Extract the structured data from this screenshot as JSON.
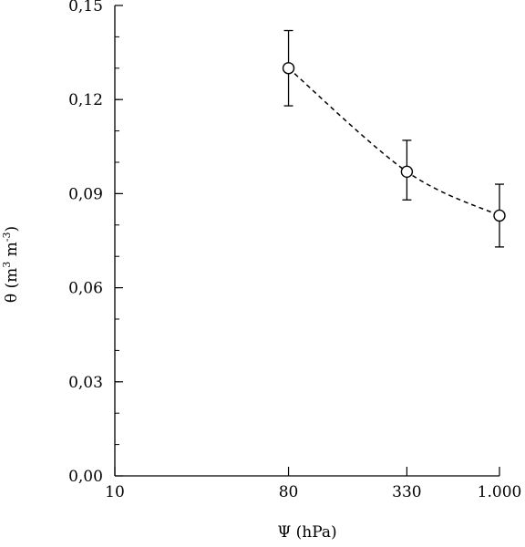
{
  "chart_data": {
    "type": "scatter",
    "title": "",
    "xlabel": "Ψ (hPa)",
    "ylabel": "θ (m3 m-3)",
    "ylabel_parts": {
      "symbol": "θ (m",
      "exp1": "3",
      "mid": " m",
      "exp2": "-3",
      "close": ")"
    },
    "x_scale": "log",
    "xlim": [
      10,
      1000
    ],
    "ylim": [
      0,
      0.15
    ],
    "x_ticks": [
      {
        "value": 10,
        "label": "10"
      },
      {
        "value": 80,
        "label": "80"
      },
      {
        "value": 330,
        "label": "330"
      },
      {
        "value": 1000,
        "label": "1.000"
      }
    ],
    "y_ticks": [
      {
        "value": 0.0,
        "label": "0,00"
      },
      {
        "value": 0.03,
        "label": "0,03"
      },
      {
        "value": 0.06,
        "label": "0,06"
      },
      {
        "value": 0.09,
        "label": "0,09"
      },
      {
        "value": 0.12,
        "label": "0,12"
      },
      {
        "value": 0.15,
        "label": "0,15"
      }
    ],
    "y_minor_step": 0.01,
    "grid": false,
    "series": [
      {
        "marker": "open-circle",
        "line": "dashed-smooth",
        "points": [
          {
            "x": 80,
            "y": 0.13,
            "err_low": 0.118,
            "err_high": 0.142
          },
          {
            "x": 330,
            "y": 0.097,
            "err_low": 0.088,
            "err_high": 0.107
          },
          {
            "x": 1000,
            "y": 0.083,
            "err_low": 0.073,
            "err_high": 0.093
          }
        ]
      }
    ]
  }
}
